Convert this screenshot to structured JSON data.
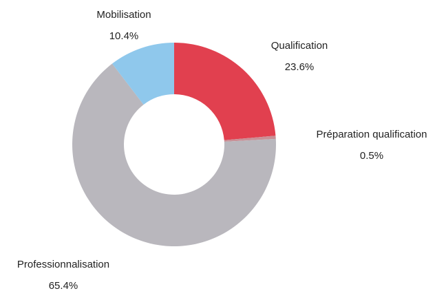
{
  "chart_data": {
    "type": "pie",
    "categories": [
      "Qualification",
      "Préparation qualification",
      "Professionnalisation",
      "Mobilisation"
    ],
    "values": [
      23.6,
      0.5,
      65.4,
      10.4
    ],
    "value_labels": [
      "23.6%",
      "0.5%",
      "65.4%",
      "10.4%"
    ],
    "colors": [
      "#e1404f",
      "#c98f96",
      "#b9b7bd",
      "#8fc8ec"
    ]
  }
}
